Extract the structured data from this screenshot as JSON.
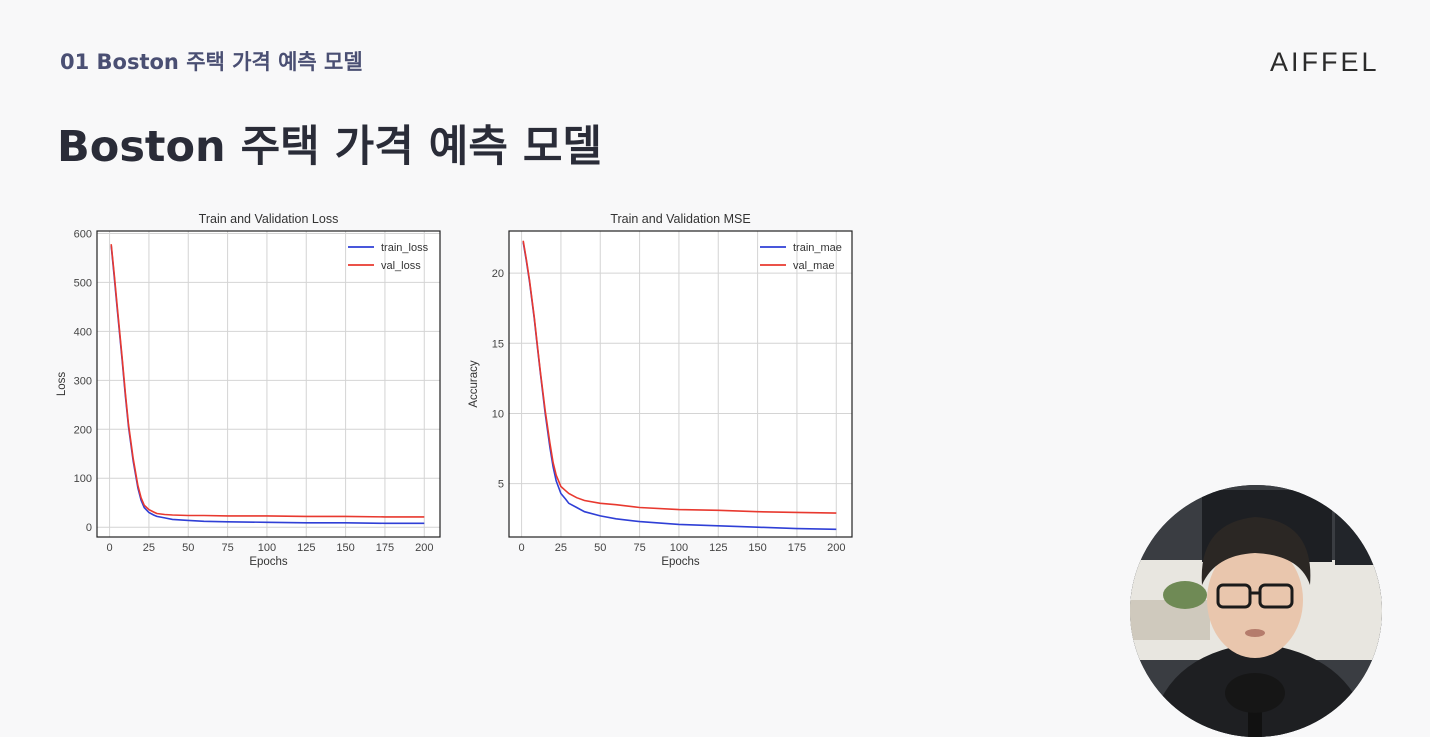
{
  "header": {
    "breadcrumb": "01 Boston 주택 가격 예측 모델",
    "logo": "AIFFEL",
    "title": "Boston 주택 가격 예측 모델"
  },
  "chart_data": [
    {
      "type": "line",
      "title": "Train and Validation Loss",
      "xlabel": "Epochs",
      "ylabel": "Loss",
      "xlim": [
        -8,
        210
      ],
      "ylim": [
        -20,
        605
      ],
      "xticks": [
        0,
        25,
        50,
        75,
        100,
        125,
        150,
        175,
        200
      ],
      "yticks": [
        0,
        100,
        200,
        300,
        400,
        500,
        600
      ],
      "grid": true,
      "legend_position": "top-right",
      "series": [
        {
          "name": "train_loss",
          "color": "#2f3fd6",
          "x": [
            1,
            3,
            5,
            8,
            10,
            12,
            15,
            18,
            20,
            22,
            25,
            28,
            30,
            35,
            40,
            50,
            60,
            75,
            100,
            125,
            150,
            175,
            200
          ],
          "y": [
            575,
            510,
            440,
            340,
            270,
            205,
            135,
            80,
            55,
            40,
            30,
            25,
            22,
            19,
            16,
            14,
            12,
            11,
            10,
            9,
            9,
            8,
            8
          ]
        },
        {
          "name": "val_loss",
          "color": "#e8392f",
          "x": [
            1,
            3,
            5,
            8,
            10,
            12,
            15,
            18,
            20,
            22,
            25,
            28,
            30,
            35,
            40,
            50,
            60,
            75,
            100,
            125,
            150,
            175,
            200
          ],
          "y": [
            578,
            515,
            445,
            345,
            275,
            210,
            140,
            85,
            60,
            45,
            36,
            31,
            28,
            26,
            25,
            24,
            24,
            23,
            23,
            22,
            22,
            21,
            21
          ]
        }
      ]
    },
    {
      "type": "line",
      "title": "Train and Validation MSE",
      "xlabel": "Epochs",
      "ylabel": "Accuracy",
      "xlim": [
        -8,
        210
      ],
      "ylim": [
        1.2,
        23.0
      ],
      "xticks": [
        0,
        25,
        50,
        75,
        100,
        125,
        150,
        175,
        200
      ],
      "yticks": [
        5,
        10,
        15,
        20
      ],
      "grid": true,
      "legend_position": "top-right",
      "series": [
        {
          "name": "train_mae",
          "color": "#2f3fd6",
          "x": [
            1,
            3,
            5,
            8,
            10,
            12,
            15,
            18,
            20,
            22,
            25,
            28,
            30,
            35,
            40,
            50,
            60,
            75,
            100,
            125,
            150,
            175,
            200
          ],
          "y": [
            22.2,
            20.9,
            19.4,
            16.8,
            14.8,
            12.8,
            10.0,
            7.6,
            6.2,
            5.2,
            4.3,
            3.9,
            3.6,
            3.3,
            3.0,
            2.7,
            2.5,
            2.3,
            2.1,
            2.0,
            1.9,
            1.8,
            1.75
          ]
        },
        {
          "name": "val_mae",
          "color": "#e8392f",
          "x": [
            1,
            3,
            5,
            8,
            10,
            12,
            15,
            18,
            20,
            22,
            25,
            28,
            30,
            35,
            40,
            50,
            60,
            75,
            100,
            125,
            150,
            175,
            200
          ],
          "y": [
            22.3,
            21.0,
            19.5,
            16.9,
            14.9,
            12.9,
            10.2,
            7.9,
            6.5,
            5.6,
            4.8,
            4.5,
            4.3,
            4.0,
            3.8,
            3.6,
            3.5,
            3.3,
            3.15,
            3.1,
            3.0,
            2.95,
            2.9
          ]
        }
      ]
    }
  ],
  "webcam": {
    "colors": {
      "wall": "#e8e6e0",
      "shirt": "#1e1f22",
      "hair": "#2b2724",
      "skin": "#e9c6ad"
    }
  }
}
